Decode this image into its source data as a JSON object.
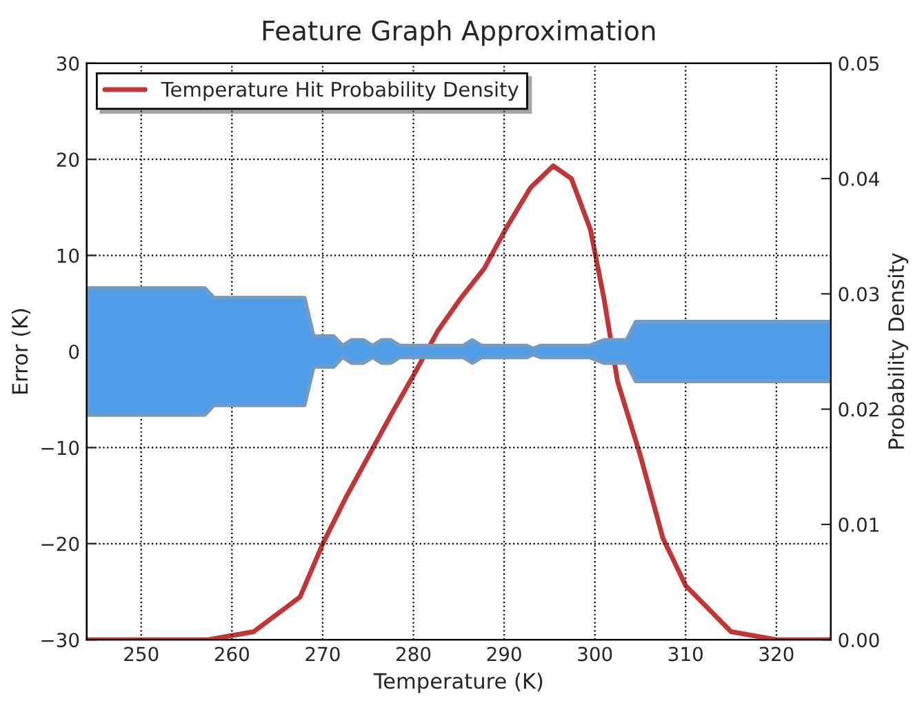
{
  "chart_data": {
    "type": "line",
    "title": "Feature Graph Approximation",
    "xlabel": "Temperature (K)",
    "ylabel": "Error (K)",
    "y2label": "Probability Density",
    "xlim": [
      244,
      326
    ],
    "xticks": [
      250,
      260,
      270,
      280,
      290,
      300,
      310,
      320
    ],
    "ylim": [
      -30,
      30
    ],
    "yticks": [
      {
        "value": -30,
        "label": "−30"
      },
      {
        "value": -20,
        "label": "−20"
      },
      {
        "value": -10,
        "label": "−10"
      },
      0,
      10,
      20,
      30
    ],
    "y2lim": [
      0,
      0.05
    ],
    "y2ticks": [
      {
        "value": 0,
        "label": "0.00"
      },
      {
        "value": 0.01,
        "label": "0.01"
      },
      {
        "value": 0.02,
        "label": "0.02"
      },
      {
        "value": 0.03,
        "label": "0.03"
      },
      {
        "value": 0.04,
        "label": "0.04"
      },
      {
        "value": 0.05,
        "label": "0.05"
      }
    ],
    "grid": true,
    "legend": "top left",
    "line_style": "dotted",
    "series": [
      {
        "type": "area",
        "color": "#4f9de6",
        "x": [
          244,
          257,
          258,
          268,
          269,
          271.2,
          272.2,
          273.2,
          274.5,
          275.5,
          276.5,
          277.5,
          278.5,
          285.5,
          286.5,
          287.5,
          292.5,
          293.2,
          294,
          299.4,
          301,
          303.5,
          304.5,
          326
        ],
        "values": [
          6.6,
          6.6,
          5.6,
          5.6,
          1.6,
          1.6,
          0.6,
          1.2,
          1.2,
          0.6,
          1.2,
          1.2,
          0.6,
          0.6,
          1.2,
          0.6,
          0.6,
          0.3,
          0.6,
          0.6,
          1.2,
          1.2,
          3.1,
          3.1
        ]
      },
      {
        "type": "area",
        "color": "#4f9de6",
        "x": [
          244,
          257,
          258,
          268,
          269,
          271.2,
          272.2,
          273.2,
          274.5,
          275.5,
          276.5,
          277.5,
          278.5,
          285.5,
          286.5,
          287.5,
          292.5,
          293.2,
          294,
          299.4,
          301,
          303.5,
          304.5,
          326
        ],
        "values": [
          -6.6,
          -6.6,
          -5.6,
          -5.6,
          -1.6,
          -1.6,
          -0.6,
          -1.2,
          -1.2,
          -0.6,
          -1.2,
          -1.2,
          -0.6,
          -0.6,
          -1.2,
          -0.6,
          -0.6,
          -0.3,
          -0.6,
          -0.6,
          -1.2,
          -1.2,
          -3.1,
          -3.1
        ]
      },
      {
        "axis": "y2",
        "name": "Temperature Hit Probability Density",
        "color": "#c03636",
        "line_style": "solid",
        "x": [
          244,
          255,
          257.4,
          262.4,
          267.5,
          270,
          272.6,
          275.1,
          277.6,
          280.2,
          282.7,
          285.2,
          287.8,
          290.3,
          292.9,
          295.4,
          297.4,
          299.5,
          301,
          302.5,
          305,
          307.5,
          310,
          315,
          320,
          326
        ],
        "values": [
          0,
          0,
          0,
          0.0007,
          0.0037,
          0.0083,
          0.0124,
          0.016,
          0.0196,
          0.0232,
          0.0268,
          0.0296,
          0.0322,
          0.0358,
          0.0392,
          0.0411,
          0.04,
          0.0356,
          0.0296,
          0.0224,
          0.016,
          0.0088,
          0.0047,
          0.0007,
          0,
          0
        ]
      }
    ]
  }
}
